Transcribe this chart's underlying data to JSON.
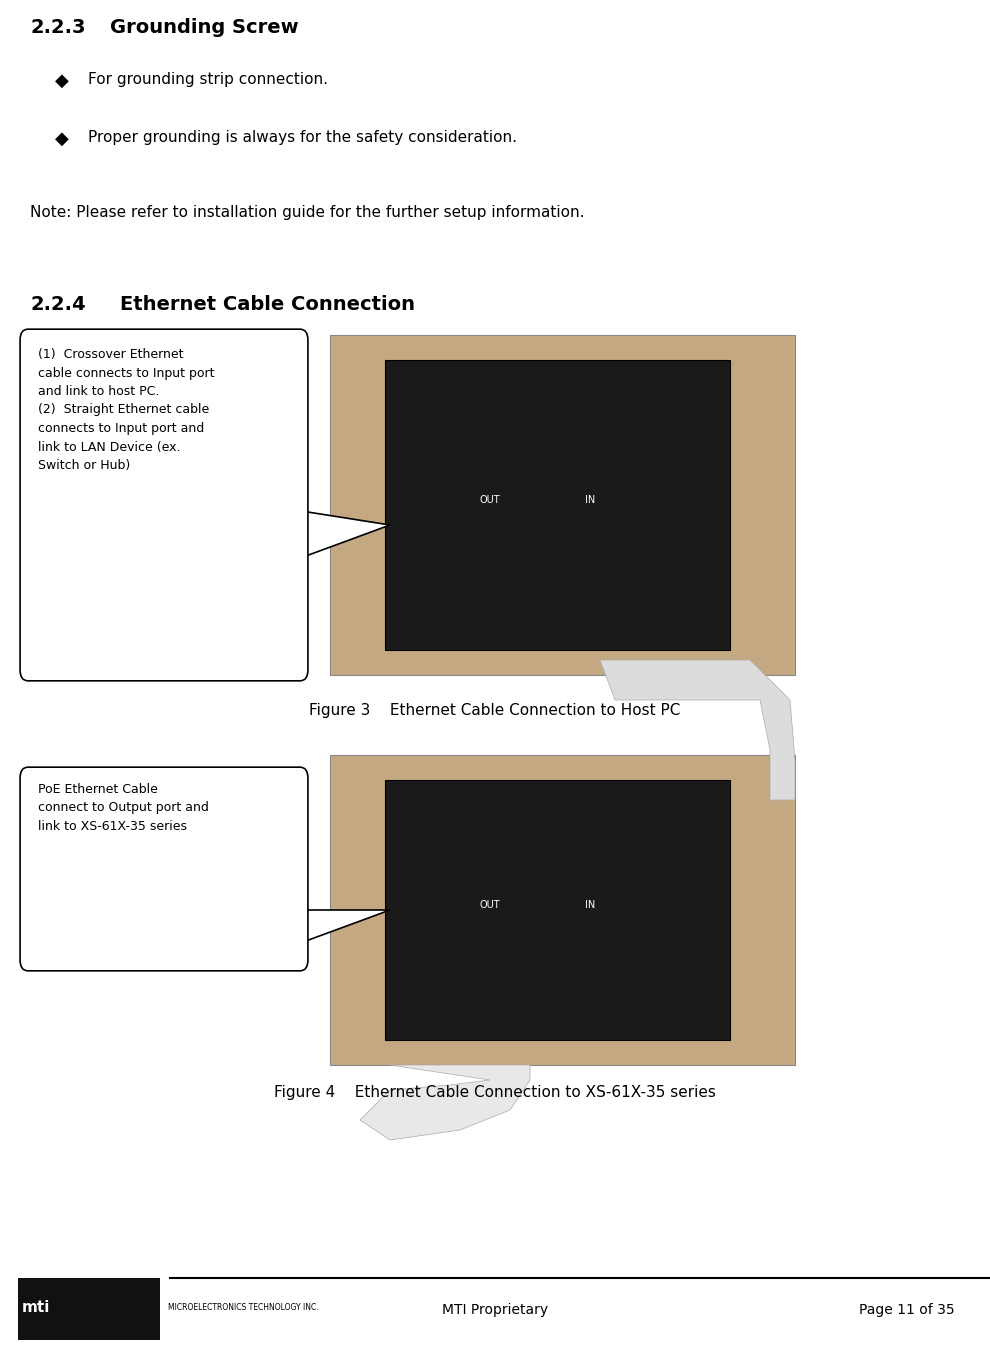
{
  "bg_color": "#ffffff",
  "page_width": 9.9,
  "page_height": 13.53,
  "section_223_label": "2.2.3",
  "section_223_title": "Grounding Screw",
  "bullet1": "For grounding strip connection.",
  "bullet2": "Proper grounding is always for the safety consideration.",
  "note_text": "Note: Please refer to installation guide for the further setup information.",
  "section_224_label": "2.2.4",
  "section_224_title": "Ethernet Cable Connection",
  "callout1_lines": [
    "(1)  Crossover Ethernet",
    "cable connects to Input port",
    "and link to host PC.",
    "(2)  Straight Ethernet cable",
    "connects to Input port and",
    "link to LAN Device (ex.",
    "Switch or Hub)"
  ],
  "figure3_caption": "Figure 3    Ethernet Cable Connection to Host PC",
  "callout2_lines": [
    "PoE Ethernet Cable",
    "connect to Output port and",
    "link to XS-61X-35 series"
  ],
  "figure4_caption": "Figure 4    Ethernet Cable Connection to XS-61X-35 series",
  "footer_mti": "MTI Proprietary",
  "footer_page": "Page 11 of 35",
  "title_fontsize": 14,
  "body_fontsize": 11,
  "note_fontsize": 11,
  "caption_fontsize": 11,
  "footer_fontsize": 10
}
